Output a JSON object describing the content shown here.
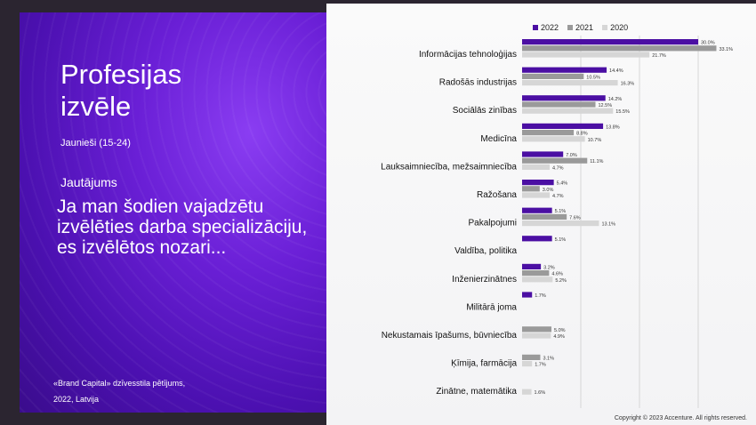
{
  "slide": {
    "title_line1": "Profesijas",
    "title_line2": "izvēle",
    "subtitle": "Jaunieši (15-24)",
    "question_label": "Jautājums",
    "question_text": "Ja man šodien vajadzētu izvēlēties darba specializāciju, es izvēlētos nozari...",
    "source_line1": "«Brand Capital» dzīvesstila pētījums,",
    "source_line2": "2022, Latvija",
    "copyright": "Copyright © 2023 Accenture. All rights reserved."
  },
  "colors": {
    "s2022": "#4b0fa3",
    "s2021": "#9a9a9a",
    "s2020": "#d6d6d6"
  },
  "chart_data": {
    "type": "bar",
    "orientation": "horizontal",
    "categories": [
      "Informācijas tehnoloģijas",
      "Radošās industrijas",
      "Sociālās zinības",
      "Medicīna",
      "Lauksaimniecība, mežsaimniecība",
      "Ražošana",
      "Pakalpojumi",
      "Valdība, politika",
      "Inženierzinātnes",
      "Militārā joma",
      "Nekustamais īpašums, būvniecība",
      "Ķīmija, farmācija",
      "Zinātne, matemātika"
    ],
    "series": [
      {
        "name": "2022",
        "values": [
          30.0,
          14.4,
          14.2,
          13.8,
          7.0,
          5.4,
          5.1,
          5.1,
          3.2,
          1.7,
          null,
          null,
          null
        ]
      },
      {
        "name": "2021",
        "values": [
          33.1,
          10.5,
          12.5,
          8.8,
          11.1,
          3.0,
          7.6,
          null,
          4.6,
          null,
          5.0,
          3.1,
          null
        ]
      },
      {
        "name": "2020",
        "values": [
          21.7,
          16.3,
          15.5,
          10.7,
          4.7,
          4.7,
          13.1,
          null,
          5.2,
          null,
          4.9,
          1.7,
          1.6
        ]
      }
    ],
    "labels": [
      [
        "30.0%",
        "33.1%",
        "21.7%"
      ],
      [
        "14.4%",
        "10.5%",
        "16.3%"
      ],
      [
        "14.2%",
        "12.5%",
        "15.5%"
      ],
      [
        "13.8%",
        "8.8%",
        "10.7%"
      ],
      [
        "7.0%",
        "11.1%",
        "4.7%"
      ],
      [
        "5.4%",
        "3.0%",
        "4.7%"
      ],
      [
        "5.1%",
        "7.6%",
        "13.1%"
      ],
      [
        "5.1%",
        "",
        ""
      ],
      [
        "3.2%",
        "4.6%",
        "5.2%"
      ],
      [
        "1.7%",
        "",
        ""
      ],
      [
        "",
        "5.0%",
        "4.9%"
      ],
      [
        "",
        "3.1%",
        "1.7%"
      ],
      [
        "",
        "",
        "1.6%"
      ]
    ],
    "xlim": [
      0,
      40
    ],
    "grid": true,
    "legend_position": "top"
  }
}
